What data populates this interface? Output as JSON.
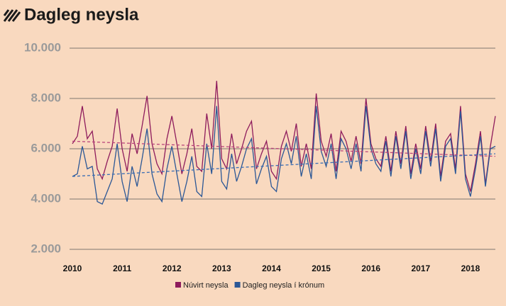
{
  "chart_data": {
    "type": "line",
    "title": "Dagleg neysla",
    "xlim": [
      2010,
      2018.5
    ],
    "xticks": [
      2010,
      2011,
      2012,
      2013,
      2014,
      2015,
      2016,
      2017,
      2018
    ],
    "ylim": [
      2000,
      10000
    ],
    "yticks": [
      {
        "value": 2000,
        "label": "2.000"
      },
      {
        "value": 4000,
        "label": "4.000"
      },
      {
        "value": 6000,
        "label": "6.000"
      },
      {
        "value": 8000,
        "label": "8.000"
      },
      {
        "value": 10000,
        "label": "10.000"
      }
    ],
    "grid": true,
    "x": [
      2010.0,
      2010.1,
      2010.2,
      2010.3,
      2010.4,
      2010.5,
      2010.6,
      2010.7,
      2010.8,
      2010.9,
      2011.0,
      2011.1,
      2011.2,
      2011.3,
      2011.4,
      2011.5,
      2011.6,
      2011.7,
      2011.8,
      2011.9,
      2012.0,
      2012.1,
      2012.2,
      2012.3,
      2012.4,
      2012.5,
      2012.6,
      2012.7,
      2012.8,
      2012.9,
      2013.0,
      2013.1,
      2013.2,
      2013.3,
      2013.4,
      2013.5,
      2013.6,
      2013.7,
      2013.8,
      2013.9,
      2014.0,
      2014.1,
      2014.2,
      2014.3,
      2014.4,
      2014.5,
      2014.6,
      2014.7,
      2014.8,
      2014.9,
      2015.0,
      2015.1,
      2015.2,
      2015.3,
      2015.4,
      2015.5,
      2015.6,
      2015.7,
      2015.8,
      2015.9,
      2016.0,
      2016.1,
      2016.2,
      2016.3,
      2016.4,
      2016.5,
      2016.6,
      2016.7,
      2016.8,
      2016.9,
      2017.0,
      2017.1,
      2017.2,
      2017.3,
      2017.4,
      2017.5,
      2017.6,
      2017.7,
      2017.8,
      2017.9,
      2018.0,
      2018.1,
      2018.2,
      2018.3,
      2018.4,
      2018.5
    ],
    "series": [
      {
        "name": "Núvirt neysla",
        "color": "#8e1b5c",
        "values": [
          6200,
          6500,
          7700,
          6400,
          6700,
          5200,
          4800,
          5500,
          6100,
          7600,
          6000,
          5100,
          6600,
          5800,
          6900,
          8100,
          6200,
          5400,
          5000,
          6400,
          7300,
          6200,
          5000,
          5800,
          6800,
          5300,
          5100,
          7400,
          6000,
          8700,
          5600,
          5200,
          6600,
          5400,
          6000,
          6700,
          7100,
          5200,
          5800,
          6300,
          5100,
          4800,
          6100,
          6700,
          5900,
          7000,
          5300,
          6200,
          5200,
          8200,
          6300,
          5700,
          6600,
          5100,
          6700,
          6300,
          5500,
          6500,
          5400,
          8000,
          6200,
          5600,
          5300,
          6500,
          5100,
          6700,
          5400,
          6900,
          5000,
          6200,
          5200,
          6900,
          5500,
          7000,
          4900,
          6300,
          6600,
          5200,
          7700,
          5000,
          4300,
          5400,
          6700,
          4600,
          6100,
          7300
        ],
        "trend": {
          "x": [
            2010,
            2018.5
          ],
          "values": [
            6300,
            5700
          ],
          "color": "#b8417a"
        }
      },
      {
        "name": "Dagleg neysla í krónum",
        "color": "#2b5796",
        "values": [
          4900,
          5000,
          6100,
          5200,
          5300,
          3900,
          3800,
          4300,
          4800,
          6200,
          4700,
          3900,
          5300,
          4500,
          5600,
          6800,
          5000,
          4200,
          3900,
          5200,
          6100,
          5000,
          3900,
          4700,
          5700,
          4300,
          4100,
          6200,
          5000,
          7700,
          4700,
          4400,
          5800,
          4700,
          5300,
          6000,
          6400,
          4600,
          5200,
          5700,
          4500,
          4300,
          5600,
          6200,
          5400,
          6500,
          4900,
          5800,
          4800,
          7700,
          5900,
          5300,
          6200,
          4800,
          6400,
          6000,
          5200,
          6200,
          5100,
          7700,
          6000,
          5400,
          5100,
          6300,
          4900,
          6500,
          5200,
          6700,
          4800,
          6000,
          5000,
          6700,
          5300,
          6800,
          4700,
          6100,
          6400,
          5000,
          7500,
          4800,
          4100,
          5200,
          6500,
          4500,
          6000,
          6100
        ],
        "trend": {
          "x": [
            2010,
            2018.5
          ],
          "values": [
            4900,
            5800
          ],
          "color": "#3d6fb5"
        }
      }
    ]
  }
}
